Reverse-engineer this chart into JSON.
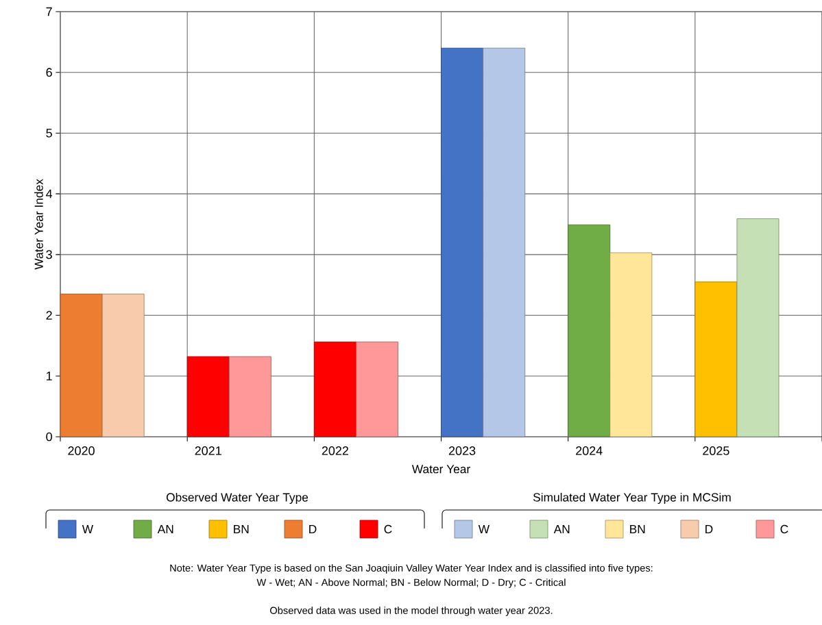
{
  "chart_data": {
    "type": "bar",
    "categories": [
      "2020",
      "2021",
      "2022",
      "2023",
      "2024",
      "2025"
    ],
    "xlabel": "Water Year",
    "ylabel": "Water Year Index",
    "ylim": [
      0,
      7
    ],
    "yticks": [
      0,
      1,
      2,
      3,
      4,
      5,
      6,
      7
    ],
    "grid": true,
    "legend": "bottom",
    "series": [
      {
        "name": "W",
        "color": "#4472c4",
        "values": [
          null,
          null,
          null,
          6.4,
          null,
          null
        ]
      },
      {
        "name": "AN",
        "color": "#70ad47",
        "values": [
          null,
          null,
          null,
          null,
          3.49,
          null
        ]
      },
      {
        "name": "BN",
        "color": "#ffc000",
        "values": [
          null,
          null,
          null,
          null,
          null,
          2.55
        ]
      },
      {
        "name": "D",
        "color": "#ed7d31",
        "values": [
          2.35,
          null,
          null,
          null,
          null,
          null
        ]
      },
      {
        "name": "C",
        "color": "#ff0000",
        "values": [
          null,
          1.32,
          1.56,
          null,
          null,
          null
        ]
      },
      {
        "name": "W",
        "color": "#b4c7e7",
        "values": [
          null,
          null,
          null,
          6.4,
          null,
          null
        ]
      },
      {
        "name": "AN",
        "color": "#c5e0b4",
        "values": [
          null,
          null,
          null,
          null,
          null,
          3.59
        ]
      },
      {
        "name": "BN",
        "color": "#ffe699",
        "values": [
          null,
          null,
          null,
          null,
          3.03,
          null
        ]
      },
      {
        "name": "D",
        "color": "#f8cbad",
        "values": [
          2.35,
          null,
          null,
          null,
          null,
          null
        ]
      },
      {
        "name": "C",
        "color": "#ff9999",
        "values": [
          null,
          1.32,
          1.56,
          null,
          null,
          null
        ]
      }
    ],
    "annotations": [
      "Observed Water Year Type",
      "Simulated Water Year Type in MCSim",
      "Note: Water Year Type is based on the San Joaqiuin Valley Water Year Index and is classified into five types:",
      "W - Wet; AN - Above Normal; BN - Below Normal; D - Dry; C - Critical",
      "Observed data was used in the model through water year 2023."
    ]
  }
}
